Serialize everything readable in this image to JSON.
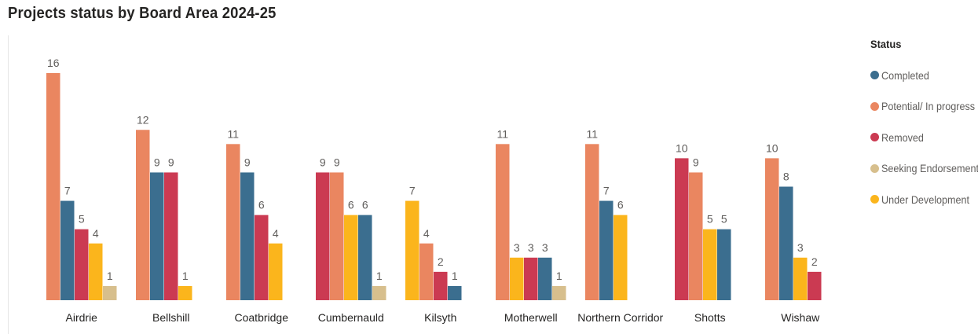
{
  "chart_data": {
    "type": "bar",
    "title": "Projects status by Board Area 2024-25",
    "xlabel": "",
    "ylabel": "",
    "ylim": [
      0,
      16
    ],
    "grid": false,
    "legend": {
      "title": "Status",
      "placement": "right"
    },
    "categories": [
      "Airdrie",
      "Bellshill",
      "Coatbridge",
      "Cumbernauld",
      "Kilsyth",
      "Motherwell",
      "Northern Corridor",
      "Shotts",
      "Wishaw"
    ],
    "series": [
      {
        "name": "Completed",
        "color": "#3b6e8f"
      },
      {
        "name": "Potential/ In progress",
        "color": "#ea8660"
      },
      {
        "name": "Removed",
        "color": "#cb3a52"
      },
      {
        "name": "Seeking Endorsement",
        "color": "#d7bf8d"
      },
      {
        "name": "Under Development",
        "color": "#fbb51c"
      }
    ],
    "groups": [
      {
        "category": "Airdrie",
        "bars": [
          {
            "status": "Potential/ In progress",
            "value": 16
          },
          {
            "status": "Completed",
            "value": 7
          },
          {
            "status": "Removed",
            "value": 5
          },
          {
            "status": "Under Development",
            "value": 4
          },
          {
            "status": "Seeking Endorsement",
            "value": 1
          }
        ]
      },
      {
        "category": "Bellshill",
        "bars": [
          {
            "status": "Potential/ In progress",
            "value": 12
          },
          {
            "status": "Completed",
            "value": 9
          },
          {
            "status": "Removed",
            "value": 9
          },
          {
            "status": "Under Development",
            "value": 1
          }
        ]
      },
      {
        "category": "Coatbridge",
        "bars": [
          {
            "status": "Potential/ In progress",
            "value": 11
          },
          {
            "status": "Completed",
            "value": 9
          },
          {
            "status": "Removed",
            "value": 6
          },
          {
            "status": "Under Development",
            "value": 4
          }
        ]
      },
      {
        "category": "Cumbernauld",
        "bars": [
          {
            "status": "Removed",
            "value": 9
          },
          {
            "status": "Potential/ In progress",
            "value": 9
          },
          {
            "status": "Under Development",
            "value": 6
          },
          {
            "status": "Completed",
            "value": 6
          },
          {
            "status": "Seeking Endorsement",
            "value": 1
          }
        ]
      },
      {
        "category": "Kilsyth",
        "bars": [
          {
            "status": "Under Development",
            "value": 7
          },
          {
            "status": "Potential/ In progress",
            "value": 4
          },
          {
            "status": "Removed",
            "value": 2
          },
          {
            "status": "Completed",
            "value": 1
          }
        ]
      },
      {
        "category": "Motherwell",
        "bars": [
          {
            "status": "Potential/ In progress",
            "value": 11
          },
          {
            "status": "Under Development",
            "value": 3
          },
          {
            "status": "Removed",
            "value": 3
          },
          {
            "status": "Completed",
            "value": 3
          },
          {
            "status": "Seeking Endorsement",
            "value": 1
          }
        ]
      },
      {
        "category": "Northern Corridor",
        "bars": [
          {
            "status": "Potential/ In progress",
            "value": 11
          },
          {
            "status": "Completed",
            "value": 7
          },
          {
            "status": "Under Development",
            "value": 6
          }
        ]
      },
      {
        "category": "Shotts",
        "bars": [
          {
            "status": "Removed",
            "value": 10
          },
          {
            "status": "Potential/ In progress",
            "value": 9
          },
          {
            "status": "Under Development",
            "value": 5
          },
          {
            "status": "Completed",
            "value": 5
          }
        ]
      },
      {
        "category": "Wishaw",
        "bars": [
          {
            "status": "Potential/ In progress",
            "value": 10
          },
          {
            "status": "Completed",
            "value": 8
          },
          {
            "status": "Under Development",
            "value": 3
          },
          {
            "status": "Removed",
            "value": 2
          }
        ]
      }
    ]
  }
}
